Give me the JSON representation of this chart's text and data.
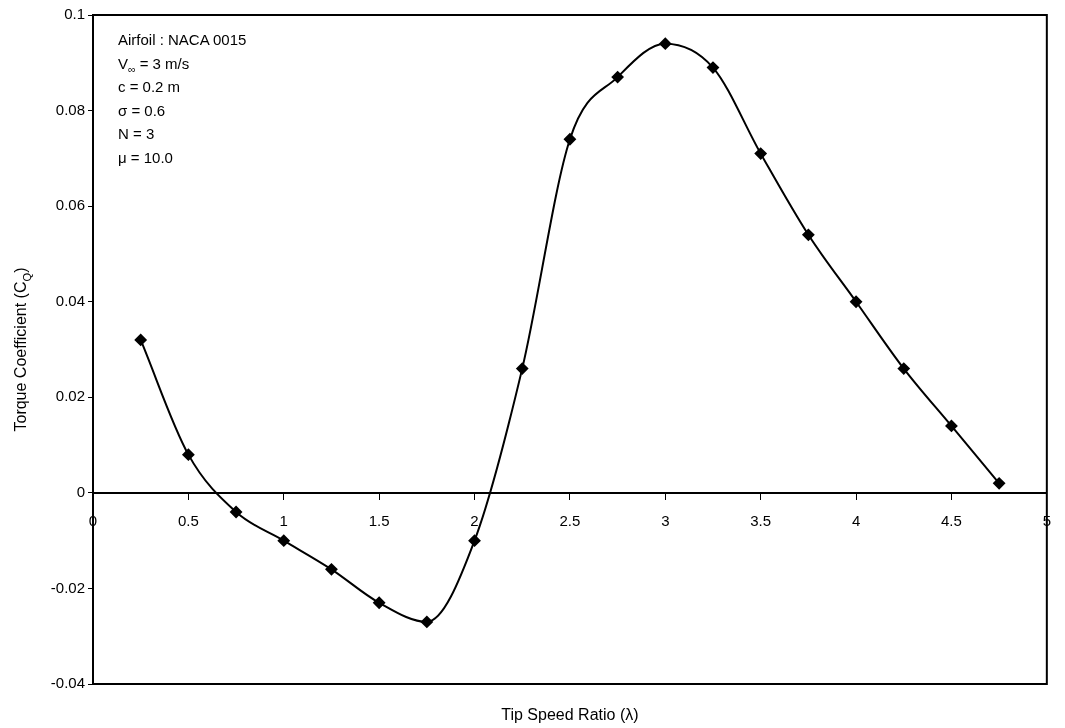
{
  "chart_data": {
    "type": "line",
    "xlabel": "Tip Speed Ratio (λ)",
    "ylabel": "Torque Coefficient (C$_{Q}$)",
    "annotations": [
      "Airfoil : NACA 0015",
      "V$_{∞}$ = 3 m/s",
      "c = 0.2 m",
      "σ = 0.6",
      "N = 3",
      "μ = 10.0"
    ],
    "x": [
      0.25,
      0.5,
      0.75,
      1,
      1.25,
      1.5,
      1.75,
      2,
      2.25,
      2.5,
      2.75,
      3,
      3.25,
      3.5,
      3.75,
      4,
      4.25,
      4.5,
      4.75
    ],
    "series": [
      {
        "color": "#000000",
        "values": [
          0.032,
          0.008,
          -0.004,
          -0.01,
          -0.016,
          -0.023,
          -0.027,
          -0.01,
          0.026,
          0.074,
          0.087,
          0.094,
          0.089,
          0.071,
          0.054,
          0.04,
          0.026,
          0.014,
          0.002
        ]
      }
    ],
    "xlim": [
      0,
      5
    ],
    "xticks": [
      0,
      0.5,
      1,
      1.5,
      2,
      2.5,
      3,
      3.5,
      4,
      4.5,
      5
    ],
    "ylim": [
      -0.04,
      0.1
    ],
    "yticks": [
      -0.04,
      -0.02,
      0,
      0.02,
      0.04,
      0.06,
      0.08,
      0.1
    ],
    "grid": false,
    "legend": false,
    "marker": "diamond",
    "line_style": "solid"
  }
}
